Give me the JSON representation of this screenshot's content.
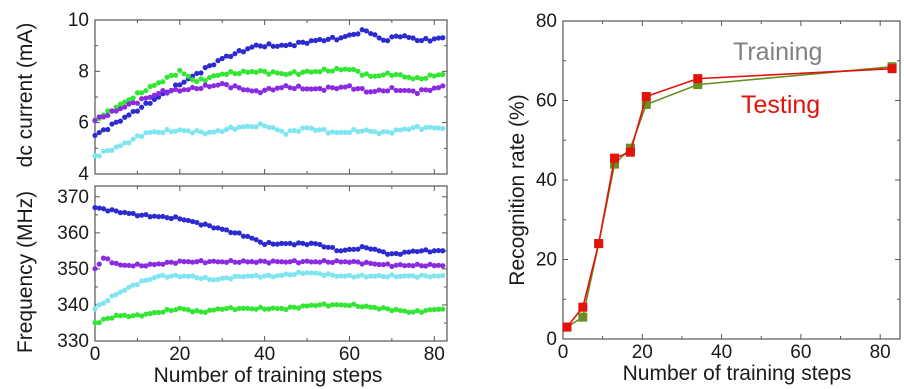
{
  "chart_data": [
    {
      "type": "scatter",
      "panel": "top-left",
      "ylabel": "dc current (mA)",
      "xlim": [
        0,
        83
      ],
      "ylim": [
        4,
        10
      ],
      "yticks": [
        "4",
        "6",
        "8",
        "10"
      ],
      "series": [
        {
          "color": "#2b2bd0",
          "x": [
            0,
            10,
            20,
            30,
            38,
            45,
            52,
            58,
            64,
            68,
            72,
            77,
            82
          ],
          "y": [
            5.5,
            6.5,
            7.5,
            8.5,
            9.0,
            9.0,
            9.2,
            9.3,
            9.6,
            9.2,
            9.4,
            9.2,
            9.3
          ]
        },
        {
          "color": "#33e633",
          "x": [
            0,
            10,
            20,
            24,
            30,
            38,
            45,
            52,
            60,
            65,
            70,
            76,
            82
          ],
          "y": [
            6.1,
            7.1,
            8.0,
            7.6,
            7.9,
            8.0,
            7.9,
            8.0,
            8.1,
            7.8,
            7.9,
            7.7,
            7.9
          ]
        },
        {
          "color": "#8a2be2",
          "x": [
            0,
            8,
            16,
            22,
            30,
            38,
            45,
            52,
            60,
            65,
            70,
            76,
            82
          ],
          "y": [
            6.1,
            6.7,
            7.2,
            7.3,
            7.5,
            7.2,
            7.4,
            7.3,
            7.4,
            7.2,
            7.3,
            7.2,
            7.4
          ]
        },
        {
          "color": "#7fe6f0",
          "x": [
            0,
            6,
            12,
            20,
            27,
            33,
            40,
            45,
            50,
            57,
            63,
            68,
            75,
            82
          ],
          "y": [
            4.7,
            5.1,
            5.6,
            5.7,
            5.6,
            5.8,
            5.9,
            5.6,
            5.8,
            5.6,
            5.7,
            5.6,
            5.8,
            5.8
          ]
        }
      ]
    },
    {
      "type": "scatter",
      "panel": "bottom-left",
      "xlabel": "Number of training steps",
      "ylabel": "Frequency (MHz)",
      "xlim": [
        0,
        83
      ],
      "ylim": [
        330,
        373
      ],
      "xticks": [
        "0",
        "20",
        "40",
        "60",
        "80"
      ],
      "yticks": [
        "330",
        "340",
        "350",
        "360",
        "370"
      ],
      "series": [
        {
          "color": "#2b2bd0",
          "x": [
            0,
            10,
            20,
            30,
            36,
            40,
            46,
            52,
            58,
            64,
            70,
            76,
            82
          ],
          "y": [
            367,
            365,
            364,
            361,
            359,
            357,
            357,
            357,
            355,
            356,
            354,
            355,
            355
          ]
        },
        {
          "color": "#8a2be2",
          "x": [
            0,
            2,
            6,
            12,
            20,
            30,
            40,
            50,
            60,
            70,
            82
          ],
          "y": [
            350,
            353,
            351,
            351,
            352,
            352,
            352,
            352,
            352,
            351,
            351
          ]
        },
        {
          "color": "#7fe6f0",
          "x": [
            0,
            5,
            10,
            15,
            22,
            28,
            35,
            42,
            50,
            58,
            65,
            72,
            82
          ],
          "y": [
            339,
            343,
            346,
            348,
            348,
            347,
            348,
            348,
            349,
            348,
            348,
            348,
            348
          ]
        },
        {
          "color": "#33e633",
          "x": [
            0,
            5,
            10,
            15,
            20,
            25,
            30,
            38,
            45,
            52,
            60,
            68,
            75,
            82
          ],
          "y": [
            335,
            337,
            337,
            338,
            339,
            338,
            339,
            339,
            339,
            340,
            340,
            339,
            338,
            339
          ]
        }
      ]
    },
    {
      "type": "line",
      "panel": "right",
      "xlabel": "Number of training steps",
      "ylabel": "Recognition rate (%)",
      "xlim": [
        0,
        85
      ],
      "ylim": [
        0,
        80
      ],
      "xticks": [
        "0",
        "20",
        "40",
        "60",
        "80"
      ],
      "yticks": [
        "0",
        "20",
        "40",
        "60",
        "80"
      ],
      "series": [
        {
          "name": "Training",
          "color": "#6b8e23",
          "label_color": "#808080",
          "x": [
            1,
            5,
            9,
            13,
            17,
            21,
            34,
            83
          ],
          "y": [
            3,
            5.5,
            24,
            44,
            48,
            59,
            64,
            68.5
          ]
        },
        {
          "name": "Testing",
          "color": "#e3120b",
          "label_color": "#e3120b",
          "x": [
            1,
            5,
            9,
            13,
            17,
            21,
            34,
            83
          ],
          "y": [
            3,
            8,
            24,
            45.5,
            47,
            61,
            65.5,
            68
          ]
        }
      ]
    }
  ]
}
